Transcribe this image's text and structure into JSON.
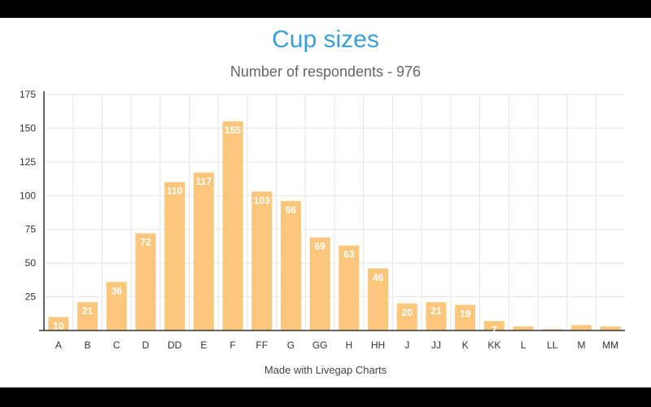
{
  "title": "Cup sizes",
  "subtitle": "Number of respondents - 976",
  "credit": "Made with Livegap Charts",
  "colors": {
    "bar": "#fac77c",
    "title": "#3a9fd6",
    "grid": "#e5e5e5",
    "axis": "#333333"
  },
  "chart_data": {
    "type": "bar",
    "title": "Cup sizes",
    "subtitle": "Number of respondents - 976",
    "categories": [
      "A",
      "B",
      "C",
      "D",
      "DD",
      "E",
      "F",
      "FF",
      "G",
      "GG",
      "H",
      "HH",
      "J",
      "JJ",
      "K",
      "KK",
      "L",
      "LL",
      "M",
      "MM"
    ],
    "values": [
      10,
      21,
      36,
      72,
      110,
      117,
      155,
      103,
      96,
      69,
      63,
      46,
      20,
      21,
      19,
      7,
      3,
      1,
      4,
      3
    ],
    "data_labels": [
      "10",
      "21",
      "36",
      "72",
      "110",
      "117",
      "155",
      "103",
      "96",
      "69",
      "63",
      "46",
      "20",
      "21",
      "19",
      "7",
      "",
      "",
      "",
      ""
    ],
    "yticks": [
      25,
      50,
      75,
      100,
      125,
      150,
      175
    ],
    "ylim": [
      0,
      175
    ],
    "grid": true,
    "legend": "none",
    "xlabel": "",
    "ylabel": ""
  }
}
